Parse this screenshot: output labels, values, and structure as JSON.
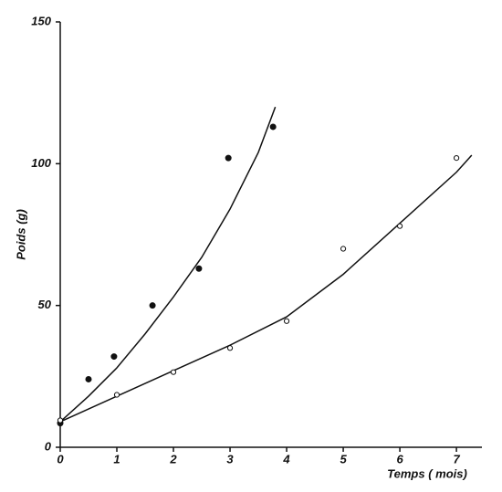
{
  "chart_data": {
    "type": "scatter",
    "x_label": "Temps ( mois)",
    "y_label": "Poids (g)",
    "xlim": [
      0,
      7.45
    ],
    "ylim": [
      0,
      150
    ],
    "xticks": [
      0,
      1,
      2,
      3,
      4,
      5,
      6,
      7
    ],
    "yticks": [
      0,
      50,
      100,
      150
    ],
    "color": "#111111",
    "series": [
      {
        "filled": true,
        "x": [
          0,
          0.5,
          0.95,
          1.63,
          2.45,
          2.97,
          3.76
        ],
        "values": [
          8.5,
          24,
          32,
          50,
          63,
          102,
          113
        ]
      },
      {
        "filled": false,
        "x": [
          0,
          1,
          2,
          3,
          4,
          5,
          6,
          7
        ],
        "values": [
          9.5,
          18.5,
          26.5,
          35,
          44.5,
          70,
          78,
          102
        ]
      }
    ],
    "curves": [
      {
        "x": [
          0,
          0.5,
          1,
          1.5,
          2,
          2.5,
          3,
          3.5,
          3.8
        ],
        "values": [
          9,
          18,
          28,
          40,
          53,
          67,
          84,
          104,
          120
        ]
      },
      {
        "x": [
          0,
          1,
          2,
          3,
          4,
          5,
          6,
          7,
          7.27
        ],
        "values": [
          9,
          18,
          27,
          36,
          46,
          61,
          79,
          97,
          103
        ]
      }
    ]
  }
}
